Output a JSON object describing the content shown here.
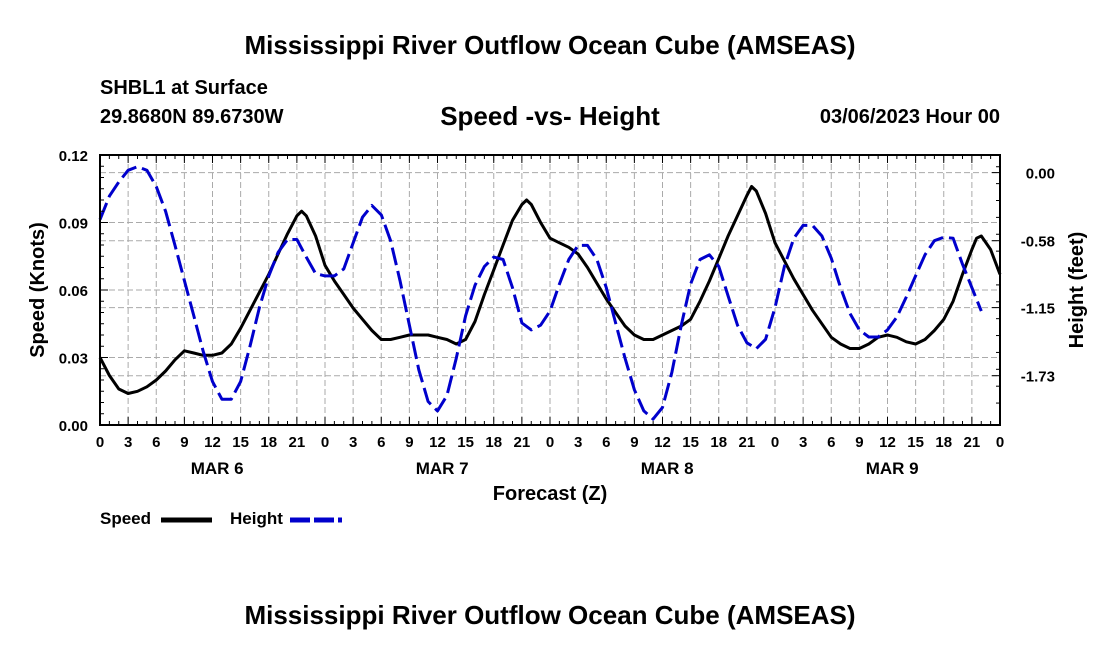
{
  "header": {
    "title": "Mississippi River Outflow Ocean Cube (AMSEAS)",
    "station": "SHBL1 at Surface",
    "coords": "29.8680N  89.6730W",
    "subtitle": "Speed -vs- Height",
    "datetime": "03/06/2023 Hour 00"
  },
  "footer": {
    "title": "Mississippi River Outflow Ocean Cube (AMSEAS)"
  },
  "chart_data": {
    "type": "line",
    "title": "Speed -vs- Height",
    "xlabel": "Forecast (Z)",
    "ylabel": "Speed (Knots)",
    "y2label": "Height (feet)",
    "xlim": [
      0,
      96
    ],
    "ylim": [
      0,
      0.12
    ],
    "y2lim": [
      0.15,
      -2.15
    ],
    "x_tick_labels": [
      "0",
      "3",
      "6",
      "9",
      "12",
      "15",
      "18",
      "21",
      "0",
      "3",
      "6",
      "9",
      "12",
      "15",
      "18",
      "21",
      "0",
      "3",
      "6",
      "9",
      "12",
      "15",
      "18",
      "21",
      "0",
      "3",
      "6",
      "9",
      "12",
      "15",
      "18",
      "21",
      "0"
    ],
    "day_labels": [
      "MAR 6",
      "MAR 7",
      "MAR 8",
      "MAR 9"
    ],
    "y_ticks": [
      "0.00",
      "0.03",
      "0.06",
      "0.09",
      "0.12"
    ],
    "y2_ticks": [
      "0.00",
      "-0.58",
      "-1.15",
      "-1.73"
    ],
    "y_tick_values": [
      0,
      0.03,
      0.06,
      0.09,
      0.12
    ],
    "y2_tick_values": [
      0,
      -0.58,
      -1.15,
      -1.73
    ],
    "grid": true,
    "legend_position": "bottom-left",
    "series": [
      {
        "name": "Speed",
        "axis": "left",
        "color": "#000000",
        "dash": "solid",
        "points": [
          [
            0,
            0.03
          ],
          [
            1,
            0.022
          ],
          [
            2,
            0.016
          ],
          [
            3,
            0.014
          ],
          [
            4,
            0.015
          ],
          [
            5,
            0.017
          ],
          [
            6,
            0.02
          ],
          [
            7,
            0.024
          ],
          [
            8,
            0.029
          ],
          [
            9,
            0.033
          ],
          [
            10,
            0.032
          ],
          [
            11,
            0.031
          ],
          [
            12,
            0.031
          ],
          [
            13,
            0.032
          ],
          [
            14,
            0.036
          ],
          [
            15,
            0.043
          ],
          [
            16,
            0.051
          ],
          [
            17,
            0.059
          ],
          [
            18,
            0.067
          ],
          [
            19,
            0.076
          ],
          [
            20,
            0.085
          ],
          [
            21,
            0.093
          ],
          [
            21.5,
            0.095
          ],
          [
            22,
            0.093
          ],
          [
            23,
            0.084
          ],
          [
            24,
            0.071
          ],
          [
            25,
            0.064
          ],
          [
            26,
            0.058
          ],
          [
            27,
            0.052
          ],
          [
            28,
            0.047
          ],
          [
            29,
            0.042
          ],
          [
            30,
            0.038
          ],
          [
            31,
            0.038
          ],
          [
            32,
            0.039
          ],
          [
            33,
            0.04
          ],
          [
            34,
            0.04
          ],
          [
            35,
            0.04
          ],
          [
            36,
            0.039
          ],
          [
            37,
            0.038
          ],
          [
            38,
            0.036
          ],
          [
            39,
            0.038
          ],
          [
            40,
            0.046
          ],
          [
            41,
            0.058
          ],
          [
            42,
            0.069
          ],
          [
            43,
            0.08
          ],
          [
            44,
            0.091
          ],
          [
            45,
            0.098
          ],
          [
            45.5,
            0.1
          ],
          [
            46,
            0.098
          ],
          [
            47,
            0.09
          ],
          [
            48,
            0.083
          ],
          [
            49,
            0.081
          ],
          [
            50,
            0.079
          ],
          [
            51,
            0.076
          ],
          [
            52,
            0.07
          ],
          [
            53,
            0.063
          ],
          [
            54,
            0.056
          ],
          [
            55,
            0.05
          ],
          [
            56,
            0.044
          ],
          [
            57,
            0.04
          ],
          [
            58,
            0.038
          ],
          [
            59,
            0.038
          ],
          [
            60,
            0.04
          ],
          [
            61,
            0.042
          ],
          [
            62,
            0.044
          ],
          [
            63,
            0.047
          ],
          [
            64,
            0.055
          ],
          [
            65,
            0.064
          ],
          [
            66,
            0.074
          ],
          [
            67,
            0.084
          ],
          [
            68,
            0.093
          ],
          [
            69,
            0.102
          ],
          [
            69.5,
            0.106
          ],
          [
            70,
            0.104
          ],
          [
            71,
            0.094
          ],
          [
            72,
            0.081
          ],
          [
            73,
            0.073
          ],
          [
            74,
            0.065
          ],
          [
            75,
            0.058
          ],
          [
            76,
            0.051
          ],
          [
            77,
            0.045
          ],
          [
            78,
            0.039
          ],
          [
            79,
            0.036
          ],
          [
            80,
            0.034
          ],
          [
            81,
            0.034
          ],
          [
            82,
            0.036
          ],
          [
            83,
            0.039
          ],
          [
            84,
            0.04
          ],
          [
            85,
            0.039
          ],
          [
            86,
            0.037
          ],
          [
            87,
            0.036
          ],
          [
            88,
            0.038
          ],
          [
            89,
            0.042
          ],
          [
            90,
            0.047
          ],
          [
            91,
            0.055
          ],
          [
            92,
            0.067
          ],
          [
            93,
            0.078
          ],
          [
            93.5,
            0.083
          ],
          [
            94,
            0.084
          ],
          [
            95,
            0.078
          ],
          [
            96,
            0.067
          ]
        ]
      },
      {
        "name": "Height",
        "axis": "right",
        "color": "#0000cc",
        "dash": "dashed",
        "points": [
          [
            0,
            -0.4
          ],
          [
            1,
            -0.2
          ],
          [
            2,
            -0.08
          ],
          [
            3,
            0.02
          ],
          [
            4,
            0.05
          ],
          [
            5,
            0.02
          ],
          [
            6,
            -0.12
          ],
          [
            7,
            -0.33
          ],
          [
            8,
            -0.62
          ],
          [
            9,
            -0.92
          ],
          [
            10,
            -1.22
          ],
          [
            11,
            -1.52
          ],
          [
            12,
            -1.78
          ],
          [
            13,
            -1.93
          ],
          [
            14,
            -1.93
          ],
          [
            15,
            -1.78
          ],
          [
            16,
            -1.48
          ],
          [
            17,
            -1.15
          ],
          [
            18,
            -0.88
          ],
          [
            19,
            -0.68
          ],
          [
            20,
            -0.57
          ],
          [
            21,
            -0.57
          ],
          [
            22,
            -0.72
          ],
          [
            23,
            -0.86
          ],
          [
            24,
            -0.88
          ],
          [
            25,
            -0.88
          ],
          [
            26,
            -0.82
          ],
          [
            27,
            -0.6
          ],
          [
            28,
            -0.38
          ],
          [
            29,
            -0.28
          ],
          [
            30,
            -0.36
          ],
          [
            31,
            -0.58
          ],
          [
            32,
            -0.92
          ],
          [
            33,
            -1.3
          ],
          [
            34,
            -1.68
          ],
          [
            35,
            -1.95
          ],
          [
            36,
            -2.03
          ],
          [
            37,
            -1.9
          ],
          [
            38,
            -1.58
          ],
          [
            39,
            -1.22
          ],
          [
            40,
            -0.96
          ],
          [
            41,
            -0.8
          ],
          [
            42,
            -0.72
          ],
          [
            43,
            -0.74
          ],
          [
            44,
            -0.98
          ],
          [
            45,
            -1.28
          ],
          [
            46,
            -1.34
          ],
          [
            47,
            -1.3
          ],
          [
            48,
            -1.18
          ],
          [
            49,
            -0.95
          ],
          [
            50,
            -0.74
          ],
          [
            51,
            -0.62
          ],
          [
            52,
            -0.62
          ],
          [
            53,
            -0.74
          ],
          [
            54,
            -0.98
          ],
          [
            55,
            -1.28
          ],
          [
            56,
            -1.58
          ],
          [
            57,
            -1.85
          ],
          [
            58,
            -2.03
          ],
          [
            59,
            -2.1
          ],
          [
            60,
            -2.0
          ],
          [
            61,
            -1.7
          ],
          [
            62,
            -1.3
          ],
          [
            63,
            -0.95
          ],
          [
            64,
            -0.74
          ],
          [
            65,
            -0.7
          ],
          [
            66,
            -0.8
          ],
          [
            67,
            -1.05
          ],
          [
            68,
            -1.3
          ],
          [
            69,
            -1.45
          ],
          [
            70,
            -1.5
          ],
          [
            71,
            -1.42
          ],
          [
            72,
            -1.15
          ],
          [
            73,
            -0.8
          ],
          [
            74,
            -0.56
          ],
          [
            75,
            -0.45
          ],
          [
            76,
            -0.45
          ],
          [
            77,
            -0.54
          ],
          [
            78,
            -0.73
          ],
          [
            79,
            -0.98
          ],
          [
            80,
            -1.2
          ],
          [
            81,
            -1.34
          ],
          [
            82,
            -1.4
          ],
          [
            83,
            -1.4
          ],
          [
            84,
            -1.34
          ],
          [
            85,
            -1.23
          ],
          [
            86,
            -1.06
          ],
          [
            87,
            -0.88
          ],
          [
            88,
            -0.7
          ],
          [
            89,
            -0.58
          ],
          [
            90,
            -0.55
          ],
          [
            91,
            -0.56
          ],
          [
            92,
            -0.78
          ],
          [
            93,
            -0.98
          ],
          [
            94,
            -1.18
          ]
        ]
      }
    ]
  },
  "legend": {
    "items": [
      {
        "label": "Speed"
      },
      {
        "label": "Height"
      }
    ]
  }
}
